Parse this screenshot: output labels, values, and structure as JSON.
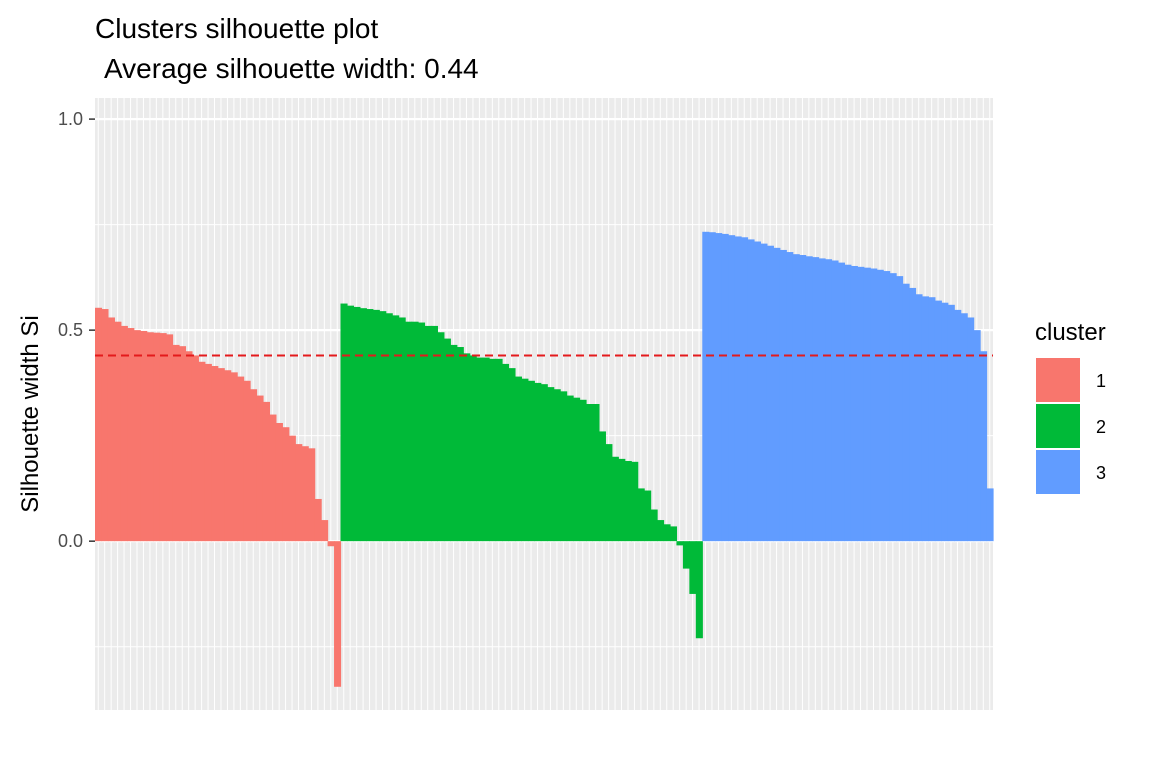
{
  "chart_data": {
    "type": "bar",
    "title": "Clusters silhouette plot",
    "subtitle": "Average silhouette width: 0.44",
    "xlabel": "",
    "ylabel": "Silhouette width Si",
    "ylim": [
      -0.4,
      1.05
    ],
    "y_ticks": [
      0.0,
      0.5,
      1.0
    ],
    "y_tick_labels": [
      "0.0",
      "0.5",
      "1.0"
    ],
    "grid": true,
    "legend_position": "right",
    "legend_title": "cluster",
    "average_line": {
      "value": 0.44,
      "color": "#e41a1c",
      "style": "dashed"
    },
    "series": [
      {
        "name": "1",
        "color": "#F8766D",
        "values": [
          0.553,
          0.55,
          0.53,
          0.52,
          0.51,
          0.505,
          0.5,
          0.498,
          0.495,
          0.494,
          0.493,
          0.49,
          0.465,
          0.462,
          0.45,
          0.44,
          0.425,
          0.42,
          0.415,
          0.41,
          0.405,
          0.4,
          0.39,
          0.38,
          0.36,
          0.345,
          0.33,
          0.3,
          0.28,
          0.27,
          0.25,
          0.23,
          0.225,
          0.22,
          0.1,
          0.05,
          -0.012,
          -0.345
        ]
      },
      {
        "name": "2",
        "color": "#00BA38",
        "values": [
          0.563,
          0.558,
          0.555,
          0.552,
          0.55,
          0.548,
          0.545,
          0.54,
          0.535,
          0.53,
          0.52,
          0.52,
          0.518,
          0.51,
          0.51,
          0.495,
          0.48,
          0.465,
          0.46,
          0.445,
          0.44,
          0.435,
          0.435,
          0.432,
          0.432,
          0.42,
          0.41,
          0.39,
          0.385,
          0.38,
          0.375,
          0.372,
          0.365,
          0.36,
          0.355,
          0.345,
          0.34,
          0.335,
          0.325,
          0.325,
          0.26,
          0.23,
          0.2,
          0.195,
          0.19,
          0.188,
          0.125,
          0.12,
          0.075,
          0.05,
          0.04,
          0.035,
          -0.01,
          -0.065,
          -0.125,
          -0.23
        ]
      },
      {
        "name": "3",
        "color": "#619CFF",
        "values": [
          0.733,
          0.732,
          0.73,
          0.728,
          0.725,
          0.722,
          0.72,
          0.715,
          0.71,
          0.705,
          0.7,
          0.695,
          0.69,
          0.685,
          0.68,
          0.678,
          0.675,
          0.673,
          0.67,
          0.668,
          0.665,
          0.66,
          0.655,
          0.652,
          0.65,
          0.648,
          0.646,
          0.643,
          0.64,
          0.635,
          0.628,
          0.61,
          0.6,
          0.585,
          0.58,
          0.578,
          0.57,
          0.565,
          0.56,
          0.548,
          0.54,
          0.53,
          0.5,
          0.45,
          0.125
        ]
      }
    ]
  }
}
